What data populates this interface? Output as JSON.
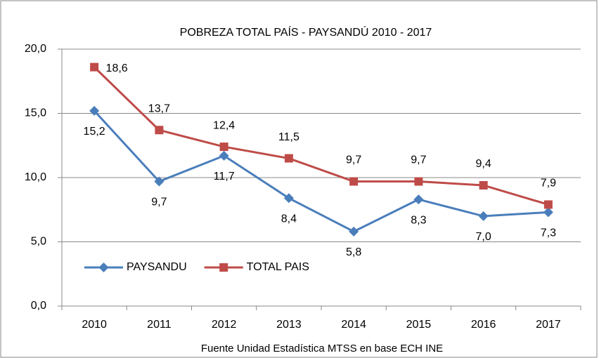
{
  "chart_data": {
    "type": "line",
    "title": "POBREZA TOTAL PAÍS - PAYSANDÚ 2010 - 2017",
    "source": "Fuente Unidad Estadística MTSS en base ECH INE",
    "categories": [
      "2010",
      "2011",
      "2012",
      "2013",
      "2014",
      "2015",
      "2016",
      "2017"
    ],
    "series": [
      {
        "name": "PAYSANDU",
        "color": "#4a7ebb",
        "marker": "diamond",
        "values": [
          15.2,
          9.7,
          11.7,
          8.4,
          5.8,
          8.3,
          7.0,
          7.3
        ],
        "value_labels": [
          "15,2",
          "9,7",
          "11,7",
          "8,4",
          "5,8",
          "8,3",
          "7,0",
          "7,3"
        ]
      },
      {
        "name": "TOTAL PAIS",
        "color": "#be4b48",
        "marker": "square",
        "values": [
          18.6,
          13.7,
          12.4,
          11.5,
          9.7,
          9.7,
          9.4,
          7.9
        ],
        "value_labels": [
          "18,6",
          "13,7",
          "12,4",
          "11,5",
          "9,7",
          "9,7",
          "9,4",
          "7,9"
        ]
      }
    ],
    "ylim": [
      0,
      20
    ],
    "yticks": [
      {
        "value": 0,
        "label": "0,0"
      },
      {
        "value": 5,
        "label": "5,0"
      },
      {
        "value": 10,
        "label": "10,0"
      },
      {
        "value": 15,
        "label": "15,0"
      },
      {
        "value": 20,
        "label": "20,0"
      }
    ],
    "grid": true,
    "legend": "lower-left"
  }
}
